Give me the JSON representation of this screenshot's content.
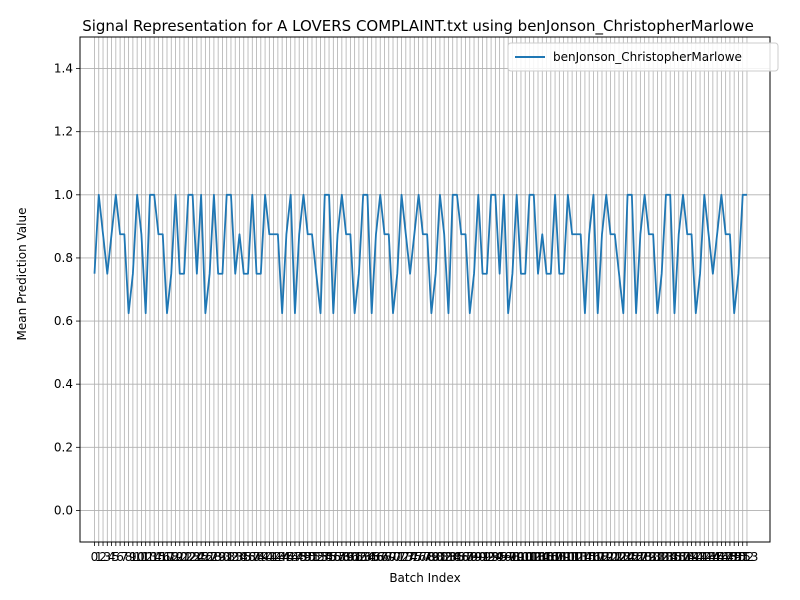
{
  "chart_data": {
    "type": "line",
    "title": "Signal Representation for A LOVERS COMPLAINT.txt using benJonson_ChristopherMarlowe",
    "xlabel": "Batch Index",
    "ylabel": "Mean Prediction Value",
    "xlim": [
      -3.4,
      158.4
    ],
    "ylim": [
      -0.1,
      1.5
    ],
    "yticks": [
      0.0,
      0.2,
      0.4,
      0.6,
      0.8,
      1.0,
      1.2,
      1.4
    ],
    "ytick_labels": [
      "0.0",
      "0.2",
      "0.4",
      "0.6",
      "0.8",
      "1.0",
      "1.2",
      "1.4"
    ],
    "xtick_label_sequence": "0123456789101112131415161718192021222324252627282930313233343536373839404142434445464748495051525354555657585960616263646566676869707172737475767778798081828384858687888990919293949596979899100101102103104105106107108109110111112113114115116117118119120121122123124125126127128129130131132133134135136137138139140141142143144145146147148149150151152153",
    "grid": true,
    "legend_position": "upper-right",
    "series": [
      {
        "name": "benJonson_ChristopherMarlowe",
        "color": "#1f77b4",
        "x_start": 0,
        "values": [
          0.75,
          1.0,
          0.875,
          0.75,
          0.875,
          1.0,
          0.875,
          0.875,
          0.625,
          0.75,
          1.0,
          0.875,
          0.625,
          1.0,
          1.0,
          0.875,
          0.875,
          0.625,
          0.75,
          1.0,
          0.75,
          0.75,
          1.0,
          1.0,
          0.75,
          1.0,
          0.625,
          0.75,
          1.0,
          0.75,
          0.75,
          1.0,
          1.0,
          0.75,
          0.875,
          0.75,
          0.75,
          1.0,
          0.75,
          0.75,
          1.0,
          0.875,
          0.875,
          0.875,
          0.625,
          0.875,
          1.0,
          0.625,
          0.875,
          1.0,
          0.875,
          0.875,
          0.75,
          0.625,
          1.0,
          1.0,
          0.625,
          0.875,
          1.0,
          0.875,
          0.875,
          0.625,
          0.75,
          1.0,
          1.0,
          0.625,
          0.875,
          1.0,
          0.875,
          0.875,
          0.625,
          0.75,
          1.0,
          0.875,
          0.75,
          0.875,
          1.0,
          0.875,
          0.875,
          0.625,
          0.75,
          1.0,
          0.875,
          0.625,
          1.0,
          1.0,
          0.875,
          0.875,
          0.625,
          0.75,
          1.0,
          0.75,
          0.75,
          1.0,
          1.0,
          0.75,
          1.0,
          0.625,
          0.75,
          1.0,
          0.75,
          0.75,
          1.0,
          1.0,
          0.75,
          0.875,
          0.75,
          0.75,
          1.0,
          0.75,
          0.75,
          1.0,
          0.875,
          0.875,
          0.875,
          0.625,
          0.875,
          1.0,
          0.625,
          0.875,
          1.0,
          0.875,
          0.875,
          0.75,
          0.625,
          1.0,
          1.0,
          0.625,
          0.875,
          1.0,
          0.875,
          0.875,
          0.625,
          0.75,
          1.0,
          1.0,
          0.625,
          0.875,
          1.0,
          0.875,
          0.875,
          0.625,
          0.75,
          1.0,
          0.875,
          0.75,
          0.875,
          1.0,
          0.875,
          0.875,
          0.625,
          0.75,
          1.0,
          1.0
        ]
      }
    ]
  }
}
